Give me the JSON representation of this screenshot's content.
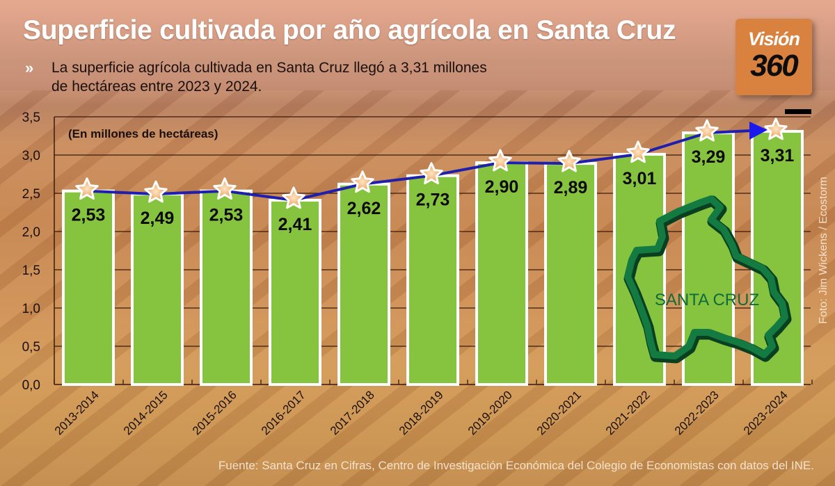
{
  "header": {
    "title": "Superficie cultivada por año agrícola en Santa Cruz",
    "subtitle_icon": "double-chevron-right-icon",
    "subtitle_line1": "La superficie agrícola cultivada en Santa Cruz llegó a 3,31 millones",
    "subtitle_line2": "de hectáreas entre 2023 y 2024."
  },
  "logo": {
    "line1": "Visión",
    "line2": "360",
    "bg_color": "#d9823f"
  },
  "credit": "Foto: Jim Wickens  /  Ecostorm",
  "source": "Fuente: Santa Cruz en Cifras,  Centro de Investigación Económica del Colegio de Economistas con datos del INE.",
  "map": {
    "label": "SANTA CRUZ",
    "icon": "bolivia-map-outline-icon"
  },
  "colors": {
    "bar": "#86c440",
    "bar_border": "#ffffff",
    "line": "#1f1fae",
    "highlight_value": "#e0180c",
    "value_text": "#0a0a0a",
    "map_outline": "#0d5a30"
  },
  "chart_data": {
    "type": "bar",
    "title": "Superficie cultivada por año agrícola en Santa Cruz",
    "ylabel": "(En millones de hectáreas)",
    "xlabel": "",
    "categories": [
      "2013-2014",
      "2014-2015",
      "2015-2016",
      "2016-2017",
      "2017-2018",
      "2018-2019",
      "2019-2020",
      "2020-2021",
      "2021-2022",
      "2022-2023",
      "2023-2024"
    ],
    "values": [
      2.53,
      2.49,
      2.53,
      2.41,
      2.62,
      2.73,
      2.9,
      2.89,
      3.01,
      3.29,
      3.31
    ],
    "value_labels": [
      "2,53",
      "2,49",
      "2,53",
      "2,41",
      "2,62",
      "2,73",
      "2,90",
      "2,89",
      "3,01",
      "3,29",
      "3,31"
    ],
    "ylim": [
      0,
      3.5
    ],
    "yticks": [
      0,
      0.5,
      1.0,
      1.5,
      2.0,
      2.5,
      3.0,
      3.5
    ],
    "ytick_labels": [
      "0,0",
      "0,5",
      "1,0",
      "1,5",
      "2,0",
      "2,5",
      "3,0",
      "3,5"
    ],
    "grid": true,
    "overlay_line": {
      "type": "line-with-star-markers",
      "values": [
        2.53,
        2.49,
        2.53,
        2.41,
        2.62,
        2.73,
        2.9,
        2.89,
        3.01,
        3.29,
        3.31
      ],
      "end_arrow": true
    },
    "highlight_index": 10
  }
}
